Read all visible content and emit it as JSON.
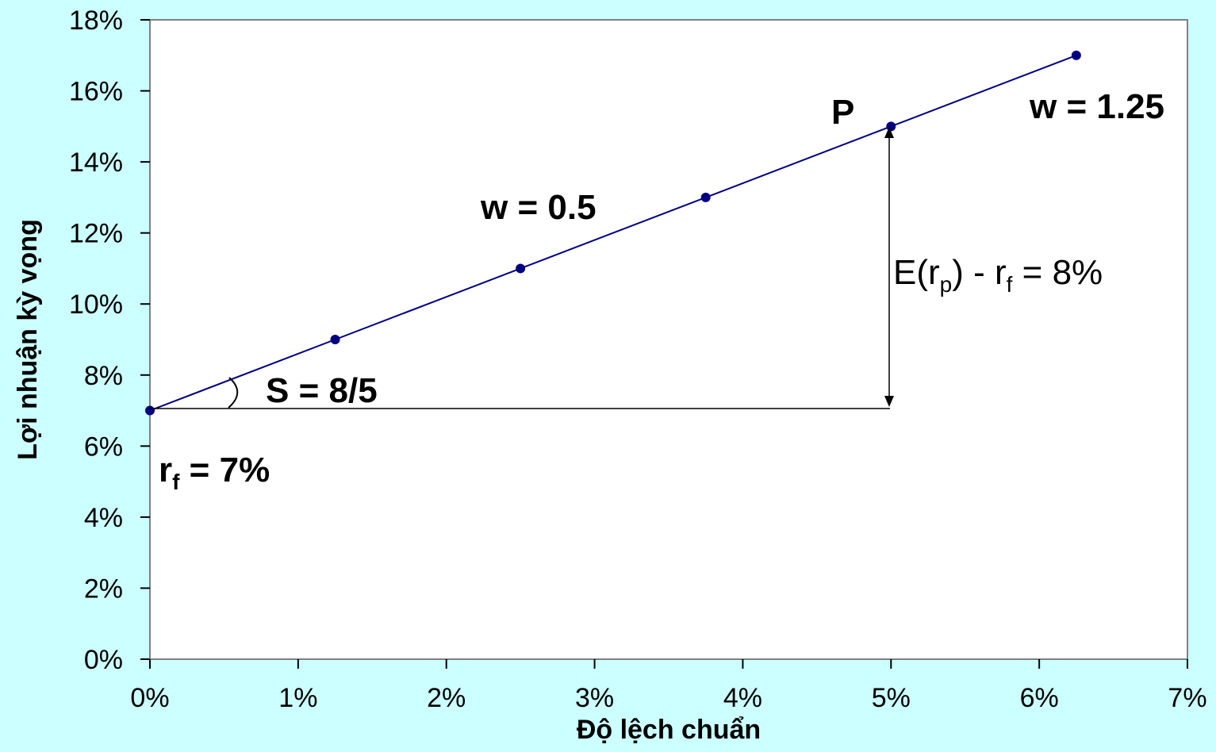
{
  "chart_data": {
    "type": "line",
    "xlabel": "Độ lệch chuẩn",
    "ylabel": "Lợi nhuận kỳ vọng",
    "xlim": [
      0,
      7
    ],
    "ylim": [
      0,
      18
    ],
    "x_ticks": [
      "0%",
      "1%",
      "2%",
      "3%",
      "4%",
      "5%",
      "6%",
      "7%"
    ],
    "y_ticks": [
      "0%",
      "2%",
      "4%",
      "6%",
      "8%",
      "10%",
      "12%",
      "14%",
      "16%",
      "18%"
    ],
    "grid": false,
    "series": [
      {
        "x": [
          0,
          1.25,
          2.5,
          3.75,
          5,
          6.25
        ],
        "y": [
          7,
          9,
          11,
          13,
          15,
          17
        ],
        "color": "#000080"
      }
    ],
    "annotations": {
      "p_label": "P",
      "w_high": "w = 1.25",
      "w_half": "w = 0.5",
      "slope": "S = 8/5",
      "rf_main": "r",
      "rf_sub": "f",
      "rf_rest": " = 7%",
      "excess_a": "E(r",
      "excess_sub1": "p",
      "excess_b": ") - r",
      "excess_sub2": "f",
      "excess_c": " = 8%"
    }
  }
}
